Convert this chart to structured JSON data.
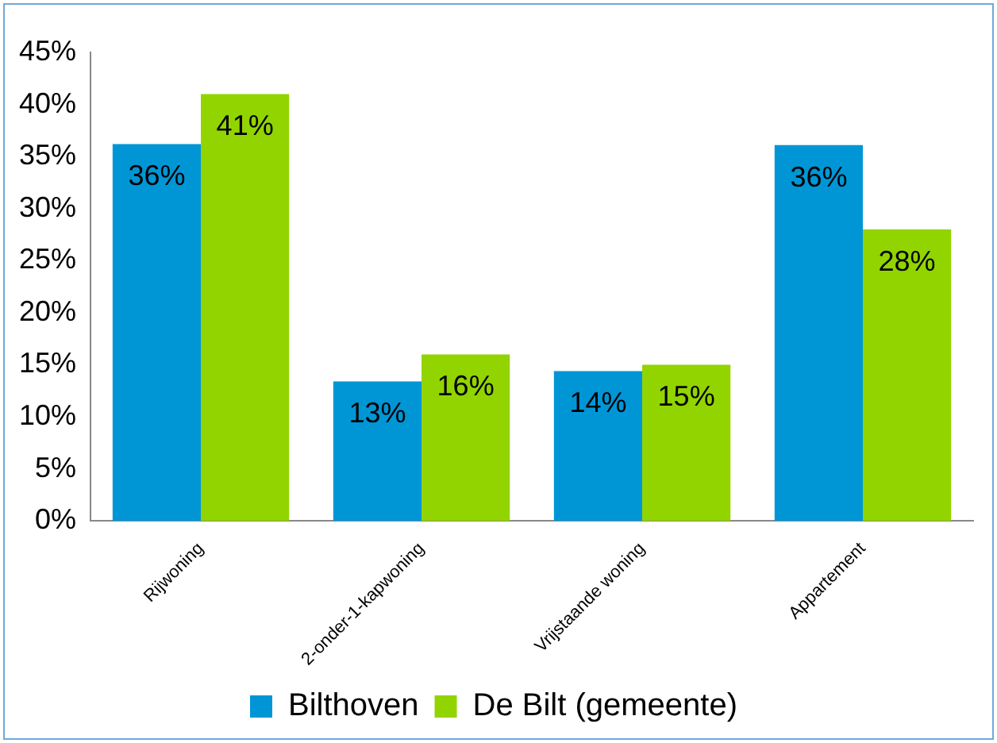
{
  "chart_data": {
    "type": "bar",
    "categories": [
      "Rijwoning",
      "2-onder-1-kapwoning",
      "Vrijstaande woning",
      "Appartement"
    ],
    "series": [
      {
        "name": "Bilthoven",
        "color": "#0096d6",
        "values": [
          36.2,
          13.4,
          14.4,
          36.1
        ],
        "value_labels": [
          "36%",
          "13%",
          "14%",
          "36%"
        ]
      },
      {
        "name": "De Bilt (gemeente)",
        "color": "#92d400",
        "values": [
          41,
          16,
          15,
          28
        ],
        "value_labels": [
          "41%",
          "16%",
          "15%",
          "28%"
        ]
      }
    ],
    "ylim": [
      0,
      45
    ],
    "yticks": [
      {
        "value": 0,
        "label": "0%"
      },
      {
        "value": 5,
        "label": "5%"
      },
      {
        "value": 10,
        "label": "10%"
      },
      {
        "value": 15,
        "label": "15%"
      },
      {
        "value": 20,
        "label": "20%"
      },
      {
        "value": 25,
        "label": "25%"
      },
      {
        "value": 30,
        "label": "30%"
      },
      {
        "value": 35,
        "label": "35%"
      },
      {
        "value": 40,
        "label": "40%"
      },
      {
        "value": 45,
        "label": "45%"
      }
    ],
    "grid": false,
    "legend": "bottom"
  }
}
